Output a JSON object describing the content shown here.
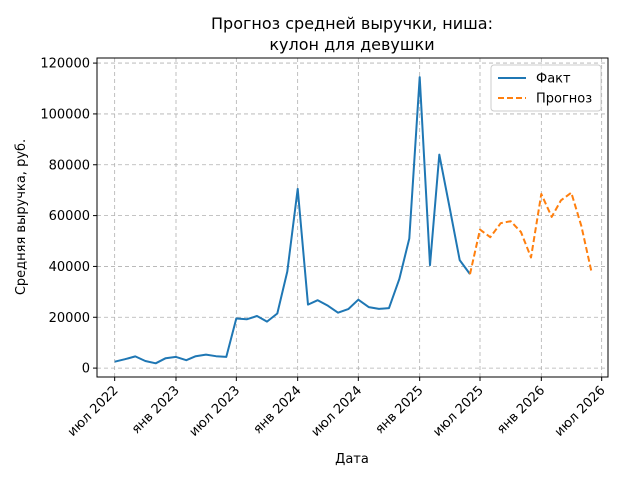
{
  "chart_data": {
    "type": "line",
    "title_line1": "Прогноз средней выручки, ниша:",
    "title_line2": "кулон для девушки",
    "xlabel": "Дата",
    "ylabel": "Средняя выручка, руб.",
    "ylim": [
      -3500,
      122000
    ],
    "xlim": [
      "2022-05-09",
      "2026-07-20"
    ],
    "grid": true,
    "legend_position": "top-right",
    "y_ticks": [
      {
        "value": 0,
        "label": "0"
      },
      {
        "value": 20000,
        "label": "20000"
      },
      {
        "value": 40000,
        "label": "40000"
      },
      {
        "value": 60000,
        "label": "60000"
      },
      {
        "value": 80000,
        "label": "80000"
      },
      {
        "value": 100000,
        "label": "100000"
      },
      {
        "value": 120000,
        "label": "120000"
      }
    ],
    "x_ticks": [
      {
        "date": "2022-07-01",
        "label": "июл 2022"
      },
      {
        "date": "2023-01-01",
        "label": "янв 2023"
      },
      {
        "date": "2023-07-01",
        "label": "июл 2023"
      },
      {
        "date": "2024-01-01",
        "label": "янв 2024"
      },
      {
        "date": "2024-07-01",
        "label": "июл 2024"
      },
      {
        "date": "2025-01-01",
        "label": "янв 2025"
      },
      {
        "date": "2025-07-01",
        "label": "июл 2025"
      },
      {
        "date": "2026-01-01",
        "label": "янв 2026"
      },
      {
        "date": "2026-07-01",
        "label": "июл 2026"
      }
    ],
    "series": [
      {
        "name": "Факт",
        "color": "#1f77b4",
        "style": "solid",
        "x": [
          "2022-07-01",
          "2022-08-01",
          "2022-09-01",
          "2022-10-01",
          "2022-11-01",
          "2022-12-01",
          "2023-01-01",
          "2023-02-01",
          "2023-03-01",
          "2023-04-01",
          "2023-05-01",
          "2023-06-01",
          "2023-07-01",
          "2023-08-01",
          "2023-09-01",
          "2023-10-01",
          "2023-11-01",
          "2023-12-01",
          "2024-01-01",
          "2024-02-01",
          "2024-03-01",
          "2024-04-01",
          "2024-05-01",
          "2024-06-01",
          "2024-07-01",
          "2024-08-01",
          "2024-09-01",
          "2024-10-01",
          "2024-11-01",
          "2024-12-01",
          "2025-01-01",
          "2025-02-01",
          "2025-03-01",
          "2025-04-01",
          "2025-05-01",
          "2025-06-01"
        ],
        "y": [
          2500,
          3500,
          4600,
          2800,
          1900,
          3900,
          4400,
          3100,
          4700,
          5300,
          4700,
          4400,
          19500,
          19200,
          20500,
          18300,
          21500,
          38000,
          70500,
          25000,
          26700,
          24500,
          21800,
          23200,
          26900,
          24000,
          23300,
          23600,
          35000,
          51000,
          114500,
          40500,
          84000,
          63000,
          42500,
          37000
        ]
      },
      {
        "name": "Прогноз",
        "color": "#ff7f0e",
        "style": "dashed",
        "x": [
          "2025-06-01",
          "2025-07-01",
          "2025-08-01",
          "2025-09-01",
          "2025-10-01",
          "2025-11-01",
          "2025-12-01",
          "2026-01-01",
          "2026-02-01",
          "2026-03-01",
          "2026-04-01",
          "2026-05-01",
          "2026-06-01"
        ],
        "y": [
          37000,
          54500,
          51500,
          57000,
          57800,
          53500,
          43500,
          68500,
          59500,
          66000,
          69000,
          56000,
          37500
        ]
      }
    ]
  }
}
